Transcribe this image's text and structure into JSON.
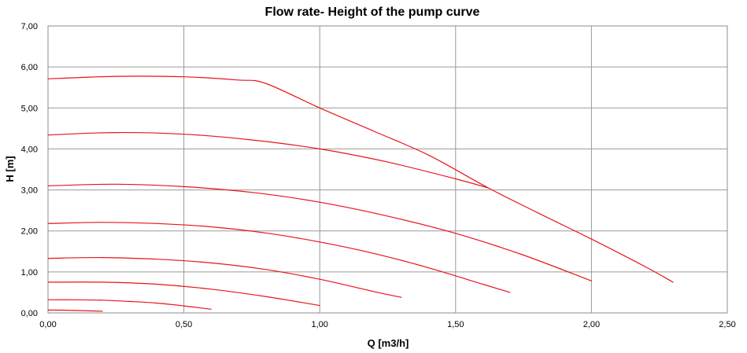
{
  "chart_data": {
    "type": "line",
    "title": "Flow rate- Height of the pump curve",
    "xlabel": "Q [m3/h]",
    "ylabel": "H [m]",
    "xlim": [
      0,
      2.5
    ],
    "ylim": [
      0,
      7
    ],
    "x_ticks": [
      "0,00",
      "0,50",
      "1,00",
      "1,50",
      "2,00",
      "2,50"
    ],
    "y_ticks": [
      "0,00",
      "1,00",
      "2,00",
      "3,00",
      "4,00",
      "5,00",
      "6,00",
      "7,00"
    ],
    "x_tick_values": [
      0,
      0.5,
      1.0,
      1.5,
      2.0,
      2.5
    ],
    "y_tick_values": [
      0,
      1,
      2,
      3,
      4,
      5,
      6,
      7
    ],
    "grid": true,
    "legend": "none",
    "line_color": "#e8141b",
    "series": [
      {
        "x": [
          0,
          0.1,
          0.2
        ],
        "y": [
          0.07,
          0.06,
          0.04
        ]
      },
      {
        "x": [
          0,
          0.1,
          0.2,
          0.3,
          0.4,
          0.5,
          0.6
        ],
        "y": [
          0.32,
          0.32,
          0.31,
          0.28,
          0.24,
          0.17,
          0.09
        ]
      },
      {
        "x": [
          0,
          0.2,
          0.4,
          0.6,
          0.8,
          1.0
        ],
        "y": [
          0.75,
          0.75,
          0.7,
          0.58,
          0.4,
          0.18
        ]
      },
      {
        "x": [
          0,
          0.2,
          0.4,
          0.6,
          0.8,
          1.0,
          1.2,
          1.3
        ],
        "y": [
          1.33,
          1.35,
          1.31,
          1.22,
          1.06,
          0.82,
          0.52,
          0.38
        ]
      },
      {
        "x": [
          0,
          0.2,
          0.4,
          0.6,
          0.8,
          1.0,
          1.2,
          1.4,
          1.6,
          1.7
        ],
        "y": [
          2.18,
          2.21,
          2.18,
          2.1,
          1.95,
          1.73,
          1.45,
          1.1,
          0.7,
          0.5
        ]
      },
      {
        "x": [
          0,
          0.25,
          0.5,
          0.75,
          1.0,
          1.25,
          1.5,
          1.75,
          2.0
        ],
        "y": [
          3.1,
          3.14,
          3.08,
          2.94,
          2.7,
          2.36,
          1.94,
          1.41,
          0.78
        ]
      },
      {
        "x": [
          0,
          0.25,
          0.5,
          0.75,
          1.0,
          1.25,
          1.5,
          1.62
        ],
        "y": [
          4.34,
          4.4,
          4.36,
          4.22,
          4.0,
          3.68,
          3.27,
          3.05
        ]
      },
      {
        "x": [
          0,
          0.25,
          0.5,
          0.7,
          0.8,
          1.0,
          1.2,
          1.4,
          1.62,
          1.8,
          2.0,
          2.2,
          2.3
        ],
        "y": [
          5.71,
          5.77,
          5.76,
          5.68,
          5.6,
          5.0,
          4.43,
          3.85,
          3.05,
          2.45,
          1.8,
          1.12,
          0.75
        ]
      }
    ]
  }
}
